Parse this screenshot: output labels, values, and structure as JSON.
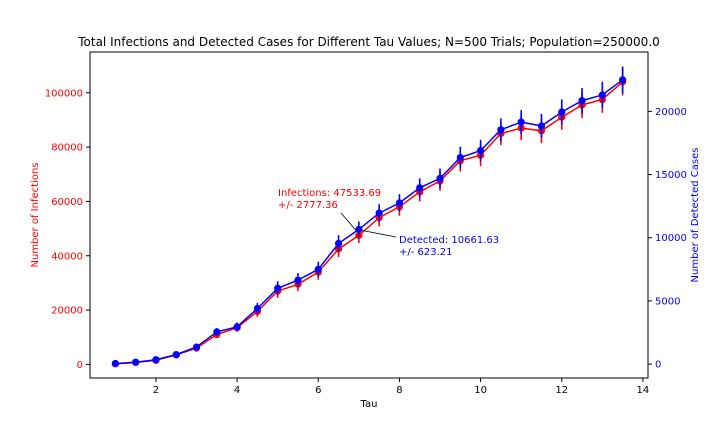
{
  "chart_data": {
    "type": "line",
    "title": "Total Infections and Detected Cases for Different Tau Values; N=500 Trials; Population=250000.0",
    "xlabel": "Tau",
    "ylabel_left": "Number of Infections",
    "ylabel_right": "Number of Detected Cases",
    "xlim": [
      0.375,
      14.125
    ],
    "ylim_left": [
      -5000,
      115000
    ],
    "ylim_right": [
      -1100,
      24700
    ],
    "x_ticks": [
      2,
      4,
      6,
      8,
      10,
      12,
      14
    ],
    "y_left_ticks": [
      0,
      20000,
      40000,
      60000,
      80000,
      100000
    ],
    "y_right_ticks": [
      0,
      5000,
      10000,
      15000,
      20000
    ],
    "grid": false,
    "x": [
      1.0,
      1.5,
      2.0,
      2.5,
      3.0,
      3.5,
      4.0,
      4.5,
      5.0,
      5.5,
      6.0,
      6.5,
      7.0,
      7.5,
      8.0,
      8.5,
      9.0,
      9.5,
      10.0,
      10.5,
      11.0,
      11.5,
      12.0,
      12.5,
      13.0,
      13.5
    ],
    "series": [
      {
        "name": "Infections",
        "axis": "left",
        "color": "#ff0000",
        "values": [
          200,
          700,
          1500,
          3500,
          6000,
          11000,
          13500,
          19500,
          27000,
          29500,
          34000,
          42500,
          47500,
          54000,
          58000,
          63500,
          67500,
          75000,
          77000,
          85000,
          87000,
          86000,
          91000,
          95500,
          97500,
          104000
        ],
        "errors": [
          100,
          200,
          300,
          500,
          800,
          1200,
          1500,
          2000,
          2500,
          2500,
          2800,
          3000,
          2778,
          3200,
          3300,
          3500,
          3600,
          4000,
          4000,
          4300,
          4400,
          4500,
          4600,
          4800,
          4900,
          5000
        ]
      },
      {
        "name": "Detected",
        "axis": "right",
        "color": "#0000ff",
        "values": [
          50,
          150,
          350,
          750,
          1350,
          2550,
          2950,
          4400,
          6000,
          6650,
          7500,
          9550,
          10662,
          11950,
          12750,
          13950,
          14700,
          16350,
          16900,
          18550,
          19150,
          18850,
          19950,
          20850,
          21300,
          22500
        ],
        "errors": [
          30,
          60,
          100,
          150,
          200,
          300,
          350,
          450,
          550,
          550,
          600,
          650,
          623,
          700,
          700,
          750,
          780,
          850,
          850,
          900,
          950,
          950,
          1000,
          1000,
          1050,
          1050
        ]
      }
    ],
    "annotations": [
      {
        "series": "Infections",
        "line1": "Infections: 47533.69",
        "line2": "+/- 2777.36",
        "color": "#ff0000"
      },
      {
        "series": "Detected",
        "line1": "Detected: 10661.63",
        "line2": "+/- 623.21",
        "color": "#0000ff"
      }
    ]
  }
}
